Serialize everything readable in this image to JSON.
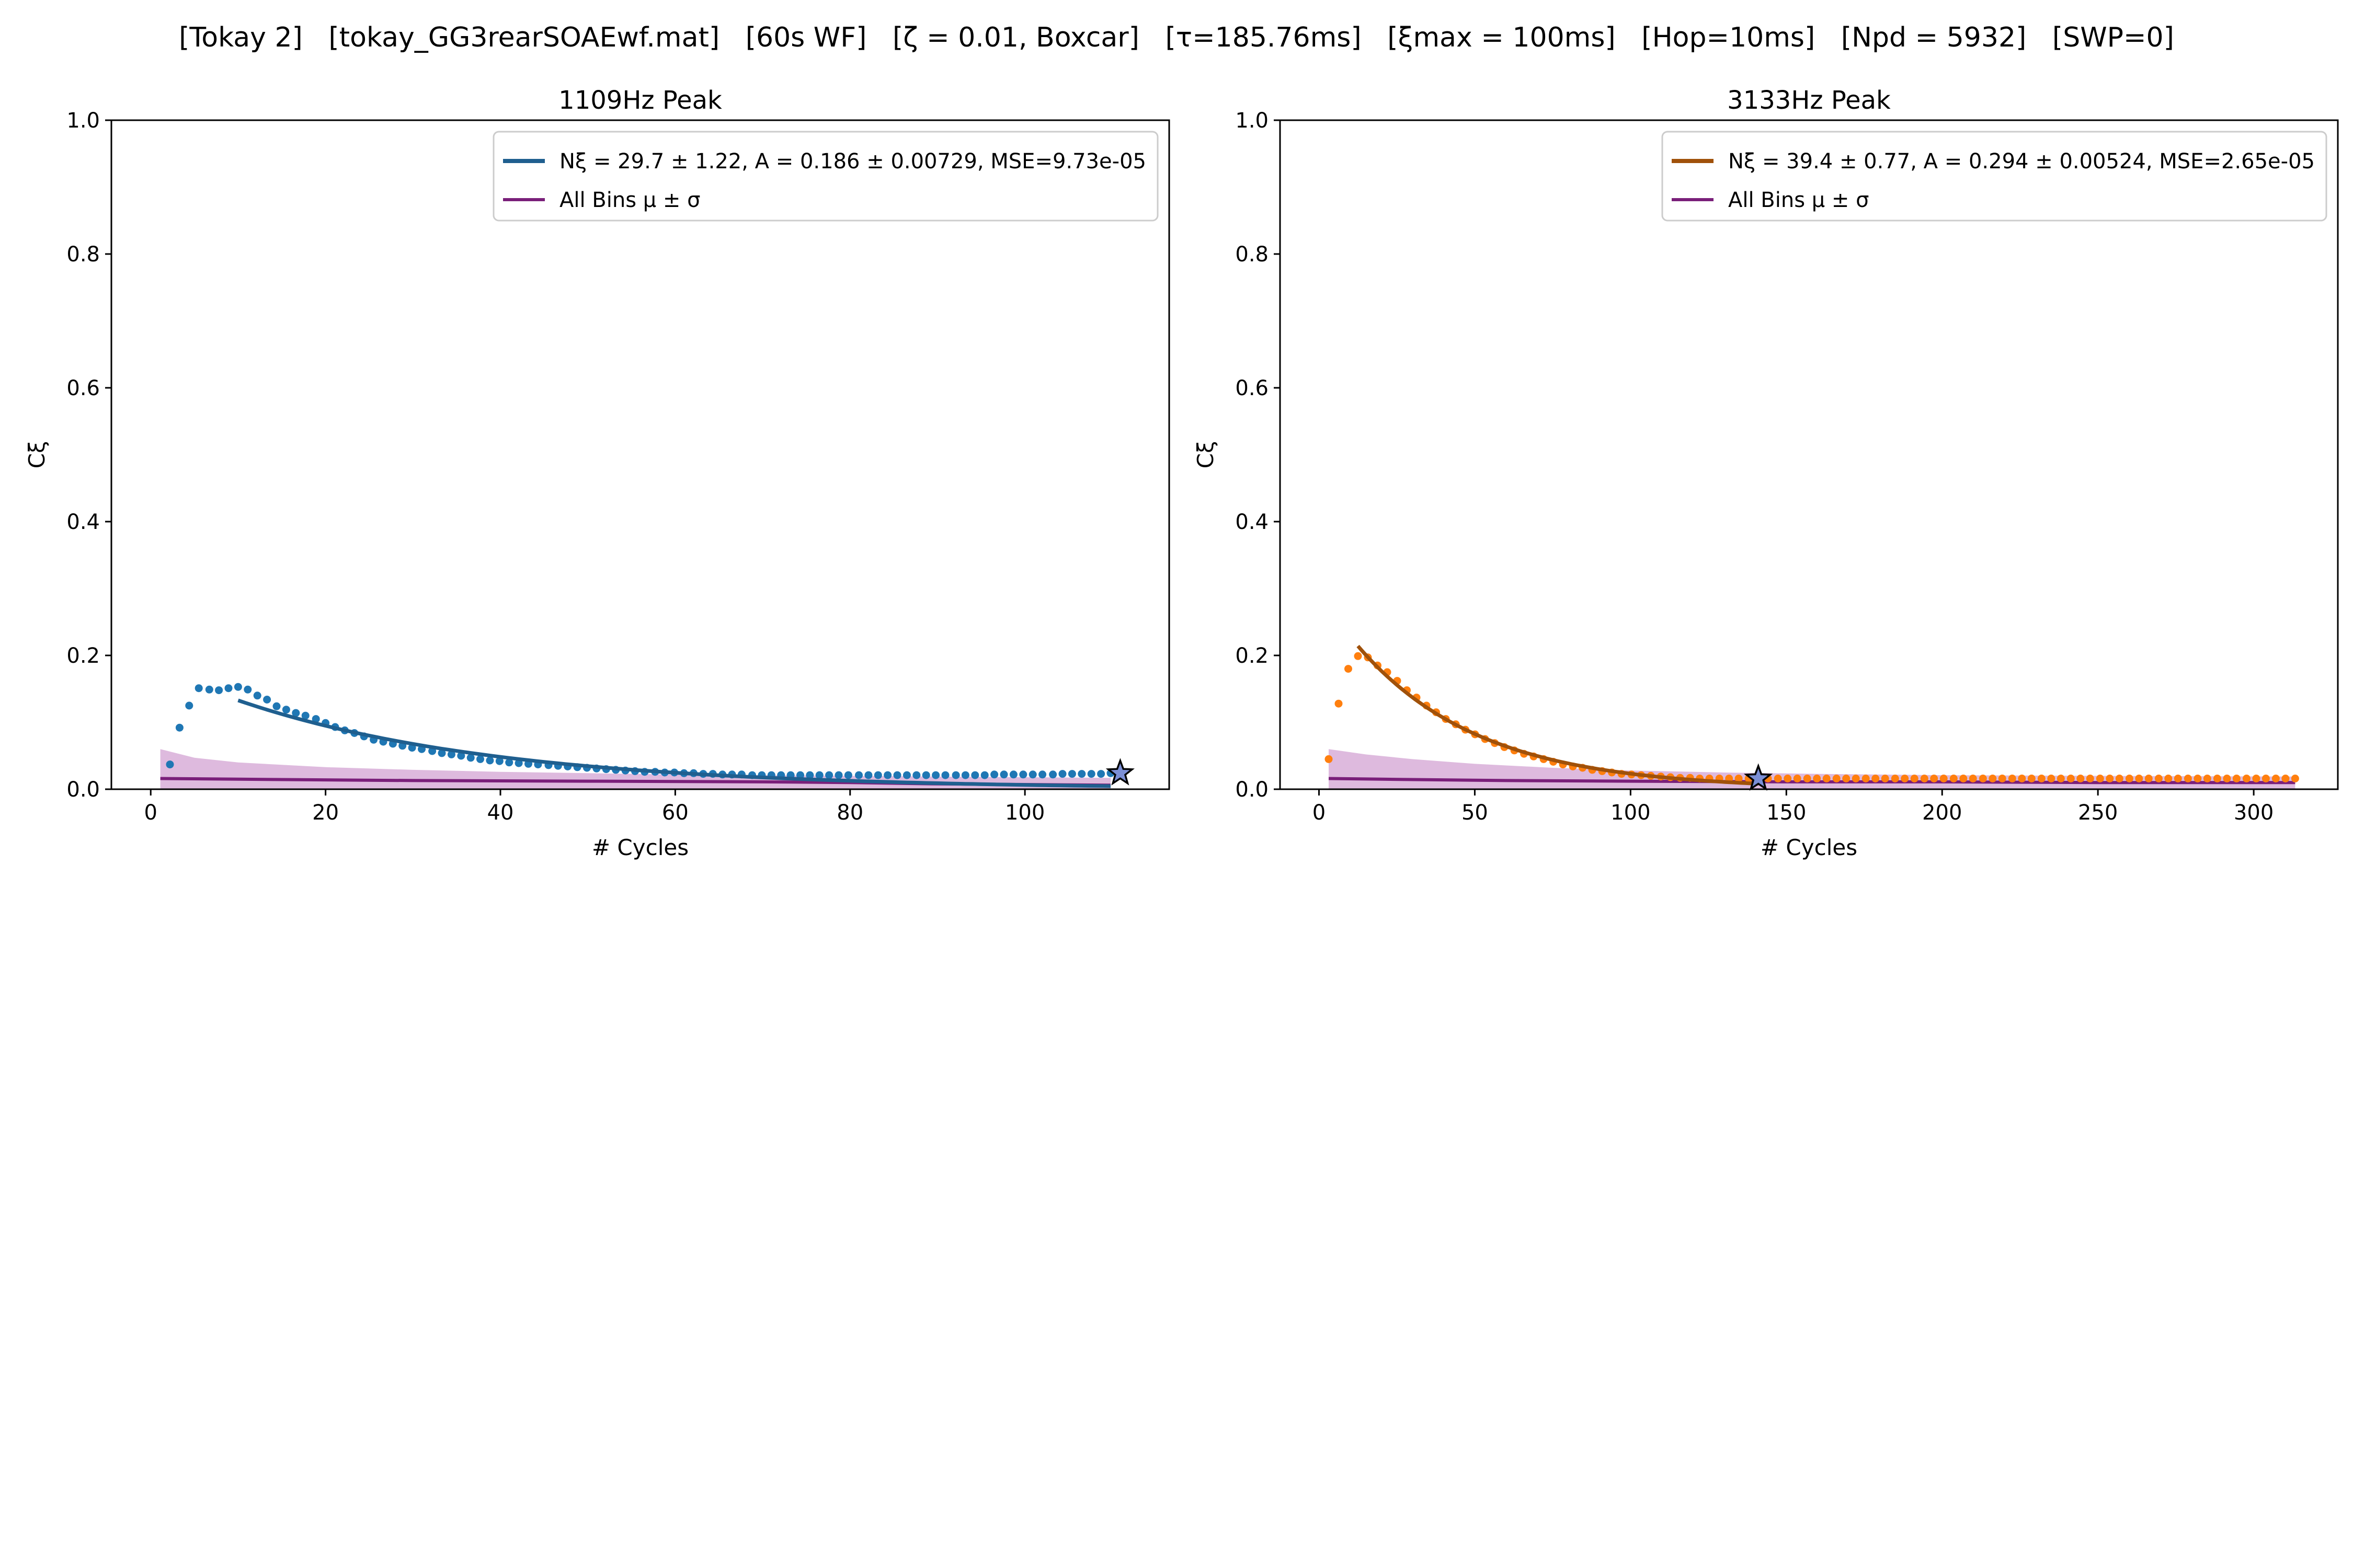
{
  "figure": {
    "title": "[Tokay 2]   [tokay_GG3rearSOAEwf.mat]   [60s WF]   [ζ = 0.01, Boxcar]   [τ=185.76ms]   [ξmax = 100ms]   [Hop=10ms]   [Npd = 5932]   [SWP=0]"
  },
  "chart_data": [
    {
      "type": "scatter",
      "title": "1109Hz Peak",
      "xlabel": "# Cycles",
      "ylabel": "Cξ",
      "xlim": [
        -4.5,
        116.5
      ],
      "ylim": [
        0,
        1
      ],
      "xticks": [
        0,
        20,
        40,
        60,
        80,
        100
      ],
      "yticks": [
        0.0,
        0.2,
        0.4,
        0.6,
        0.8,
        1.0
      ],
      "grid": false,
      "legend_position": "upper-right",
      "point_color": "#1f77b4",
      "fit_color": "#1f5f8f",
      "band_color": "#b565b5",
      "mean_color": "#7a1f7a",
      "points": {
        "x": [
          2.2,
          3.3,
          4.4,
          5.5,
          6.7,
          7.8,
          8.9,
          10.0,
          11.1,
          12.2,
          13.3,
          14.4,
          15.5,
          16.6,
          17.7,
          18.9,
          20.0,
          21.1,
          22.2,
          23.3,
          24.4,
          25.5,
          26.6,
          27.7,
          28.8,
          29.9,
          31.0,
          32.2,
          33.3,
          34.4,
          35.5,
          36.6,
          37.7,
          38.8,
          39.9,
          41.0,
          42.1,
          43.2,
          44.3,
          45.5,
          46.6,
          47.7,
          48.8,
          49.9,
          51.0,
          52.1,
          53.2,
          54.3,
          55.4,
          56.5,
          57.7,
          58.8,
          59.9,
          61.0,
          62.1,
          63.2,
          64.3,
          65.4,
          66.5,
          67.6,
          68.8,
          69.9,
          71.0,
          72.1,
          73.2,
          74.3,
          75.4,
          76.5,
          77.6,
          78.7,
          79.8,
          81.0,
          82.1,
          83.2,
          84.3,
          85.4,
          86.5,
          87.6,
          88.7,
          89.8,
          90.9,
          92.1,
          93.2,
          94.3,
          95.4,
          96.5,
          97.6,
          98.7,
          99.8,
          100.9,
          102.0,
          103.2,
          104.3,
          105.4,
          106.5,
          107.6,
          108.7,
          109.8
        ],
        "y": [
          0.037,
          0.092,
          0.125,
          0.151,
          0.149,
          0.148,
          0.151,
          0.153,
          0.149,
          0.14,
          0.134,
          0.124,
          0.119,
          0.114,
          0.11,
          0.105,
          0.099,
          0.093,
          0.088,
          0.084,
          0.079,
          0.074,
          0.071,
          0.068,
          0.065,
          0.062,
          0.06,
          0.057,
          0.054,
          0.052,
          0.05,
          0.047,
          0.045,
          0.043,
          0.042,
          0.04,
          0.039,
          0.038,
          0.037,
          0.036,
          0.035,
          0.034,
          0.033,
          0.032,
          0.031,
          0.03,
          0.029,
          0.028,
          0.027,
          0.026,
          0.026,
          0.025,
          0.025,
          0.024,
          0.024,
          0.023,
          0.023,
          0.022,
          0.022,
          0.022,
          0.021,
          0.021,
          0.021,
          0.021,
          0.021,
          0.021,
          0.021,
          0.021,
          0.021,
          0.021,
          0.021,
          0.021,
          0.021,
          0.021,
          0.021,
          0.021,
          0.021,
          0.021,
          0.021,
          0.021,
          0.021,
          0.021,
          0.021,
          0.021,
          0.021,
          0.022,
          0.022,
          0.022,
          0.022,
          0.022,
          0.022,
          0.022,
          0.023,
          0.023,
          0.023,
          0.023,
          0.023,
          0.024
        ]
      },
      "fit": {
        "N": 29.7,
        "A": 0.186,
        "x_start": 10.0,
        "x_end": 109.8
      },
      "band": {
        "x": [
          1.1,
          5,
          10,
          20,
          30,
          40,
          50,
          60,
          70,
          80,
          90,
          100,
          109.8
        ],
        "upper": [
          0.06,
          0.047,
          0.04,
          0.033,
          0.029,
          0.026,
          0.024,
          0.022,
          0.021,
          0.02,
          0.019,
          0.018,
          0.017
        ],
        "lower": [
          0.0,
          0.0,
          0.0,
          0.0,
          0.0,
          0.0,
          0.0,
          0.0,
          0.0,
          0.0,
          0.0,
          0.0,
          0.0
        ]
      },
      "mean": {
        "x": [
          1.1,
          10,
          30,
          50,
          70,
          80,
          90,
          100,
          109.8
        ],
        "y": [
          0.016,
          0.015,
          0.013,
          0.012,
          0.011,
          0.01,
          0.008,
          0.007,
          0.006
        ]
      },
      "star": {
        "x": 110.9,
        "y": 0.024
      },
      "legend": [
        "Nξ = 29.7 ± 1.22, A = 0.186 ± 0.00729, MSE=9.73e-05",
        "All Bins μ ± σ"
      ]
    },
    {
      "type": "scatter",
      "title": "3133Hz Peak",
      "xlabel": "# Cycles",
      "ylabel": "Cξ",
      "xlim": [
        -12.5,
        327
      ],
      "ylim": [
        0,
        1
      ],
      "xticks": [
        0,
        50,
        100,
        150,
        200,
        250,
        300
      ],
      "yticks": [
        0.0,
        0.2,
        0.4,
        0.6,
        0.8,
        1.0
      ],
      "grid": false,
      "legend_position": "upper-right",
      "point_color": "#ff7f0e",
      "fit_color": "#a0510a",
      "band_color": "#b565b5",
      "mean_color": "#7a1f7a",
      "points": {
        "x": [
          3.1,
          6.3,
          9.4,
          12.5,
          15.7,
          18.8,
          21.9,
          25.1,
          28.2,
          31.3,
          34.5,
          37.6,
          40.7,
          43.9,
          47.0,
          50.1,
          53.3,
          56.4,
          59.5,
          62.7,
          65.8,
          68.9,
          72.1,
          75.2,
          78.3,
          81.5,
          84.6,
          87.7,
          90.9,
          94.0,
          97.1,
          100.3,
          103.4,
          106.5,
          109.7,
          112.8,
          115.9,
          119.1,
          122.2,
          125.3,
          128.5,
          131.6,
          134.7,
          137.9,
          141.0,
          144.1,
          147.3,
          150.4,
          153.5,
          156.7,
          159.8,
          162.9,
          166.1,
          169.2,
          172.3,
          175.5,
          178.6,
          181.7,
          184.9,
          188.0,
          191.1,
          194.3,
          197.4,
          200.5,
          203.7,
          206.8,
          209.9,
          213.1,
          216.2,
          219.3,
          222.5,
          225.6,
          228.7,
          231.9,
          235.0,
          238.1,
          241.3,
          244.4,
          247.5,
          250.7,
          253.8,
          256.9,
          260.1,
          263.2,
          266.3,
          269.5,
          272.6,
          275.7,
          278.9,
          282.0,
          285.1,
          288.3,
          291.4,
          294.5,
          297.7,
          300.8,
          303.9,
          307.1,
          310.2,
          313.3
        ],
        "y": [
          0.045,
          0.128,
          0.18,
          0.199,
          0.197,
          0.185,
          0.175,
          0.162,
          0.148,
          0.137,
          0.125,
          0.115,
          0.105,
          0.097,
          0.089,
          0.082,
          0.075,
          0.069,
          0.063,
          0.058,
          0.053,
          0.049,
          0.045,
          0.041,
          0.037,
          0.034,
          0.032,
          0.029,
          0.027,
          0.025,
          0.023,
          0.022,
          0.021,
          0.02,
          0.019,
          0.018,
          0.017,
          0.017,
          0.016,
          0.016,
          0.016,
          0.016,
          0.016,
          0.016,
          0.016,
          0.016,
          0.016,
          0.016,
          0.016,
          0.016,
          0.016,
          0.016,
          0.016,
          0.016,
          0.016,
          0.016,
          0.016,
          0.016,
          0.016,
          0.016,
          0.016,
          0.016,
          0.016,
          0.016,
          0.016,
          0.016,
          0.016,
          0.016,
          0.016,
          0.016,
          0.016,
          0.016,
          0.016,
          0.016,
          0.016,
          0.016,
          0.016,
          0.016,
          0.016,
          0.016,
          0.016,
          0.016,
          0.016,
          0.016,
          0.016,
          0.016,
          0.016,
          0.016,
          0.016,
          0.016,
          0.016,
          0.016,
          0.016,
          0.016,
          0.016,
          0.016,
          0.016,
          0.016,
          0.016,
          0.016
        ]
      },
      "fit": {
        "N": 39.4,
        "A": 0.294,
        "x_start": 12.5,
        "x_end": 141.0
      },
      "band": {
        "x": [
          3.1,
          15,
          30,
          50,
          75,
          100,
          130,
          160,
          200,
          250,
          313.3
        ],
        "upper": [
          0.06,
          0.052,
          0.045,
          0.038,
          0.032,
          0.028,
          0.025,
          0.023,
          0.021,
          0.02,
          0.019
        ],
        "lower": [
          0.0,
          0.0,
          0.0,
          0.0,
          0.0,
          0.0,
          0.0,
          0.0,
          0.0,
          0.0,
          0.0
        ]
      },
      "mean": {
        "x": [
          3.1,
          20,
          60,
          100,
          150,
          200,
          250,
          313.3
        ],
        "y": [
          0.016,
          0.015,
          0.013,
          0.012,
          0.011,
          0.011,
          0.01,
          0.01
        ]
      },
      "star": {
        "x": 141.0,
        "y": 0.016
      },
      "legend": [
        "Nξ = 39.4 ± 0.77, A = 0.294 ± 0.00524, MSE=2.65e-05",
        "All Bins μ ± σ"
      ]
    }
  ]
}
